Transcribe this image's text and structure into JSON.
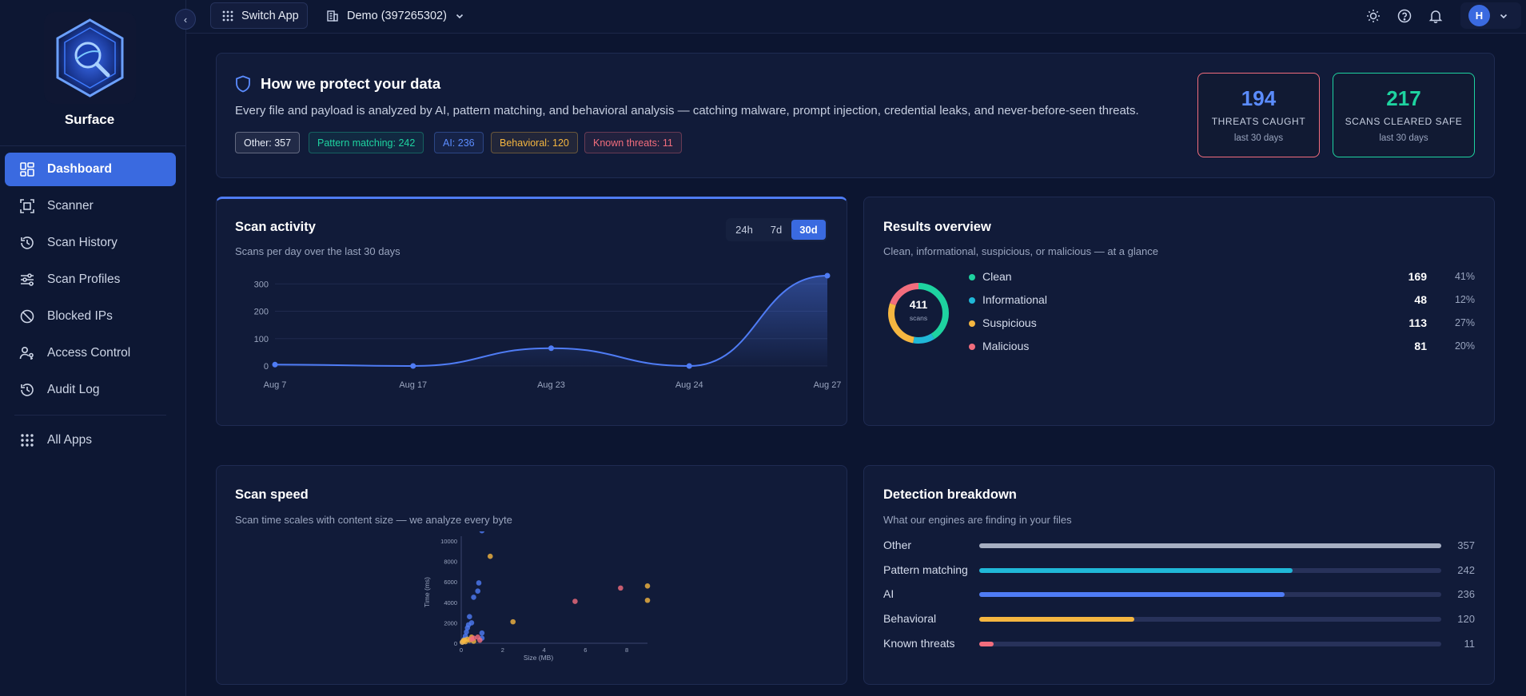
{
  "sidebar": {
    "app_name": "Surface",
    "nav": [
      {
        "label": "Dashboard",
        "icon": "dashboard-icon",
        "active": true
      },
      {
        "label": "Scanner",
        "icon": "scanner-icon",
        "active": false
      },
      {
        "label": "Scan History",
        "icon": "history-icon",
        "active": false
      },
      {
        "label": "Scan Profiles",
        "icon": "sliders-icon",
        "active": false
      },
      {
        "label": "Blocked IPs",
        "icon": "block-icon",
        "active": false
      },
      {
        "label": "Access Control",
        "icon": "user-key-icon",
        "active": false
      },
      {
        "label": "Audit Log",
        "icon": "history-icon",
        "active": false
      }
    ],
    "all_apps": "All Apps"
  },
  "topbar": {
    "switch_app": "Switch App",
    "org": "Demo (397265302)",
    "avatar_initial": "H"
  },
  "protect": {
    "title": "How we protect your data",
    "description": "Every file and payload is analyzed by AI, pattern matching, and behavioral analysis — catching malware, prompt injection, credential leaks, and never-before-seen threats.",
    "chips": [
      {
        "label": "Other: 357",
        "color": "#e6ebf5"
      },
      {
        "label": "Pattern matching: 242",
        "color": "#1ed3a0"
      },
      {
        "label": "AI: 236",
        "color": "#5b8cff"
      },
      {
        "label": "Behavioral: 120",
        "color": "#f5b640"
      },
      {
        "label": "Known threats: 11",
        "color": "#f26d7d"
      }
    ],
    "threats": {
      "value": "194",
      "label": "THREATS CAUGHT",
      "sub": "last 30 days",
      "color": "#f26d7d"
    },
    "cleared": {
      "value": "217",
      "label": "SCANS CLEARED SAFE",
      "sub": "last 30 days",
      "color": "#1ed3a0"
    }
  },
  "activity": {
    "title": "Scan activity",
    "subtitle": "Scans per day over the last 30 days",
    "ranges": [
      {
        "label": "24h",
        "active": false
      },
      {
        "label": "7d",
        "active": false
      },
      {
        "label": "30d",
        "active": true
      }
    ],
    "chart_data": {
      "type": "line",
      "x": [
        "Aug 7",
        "Aug 17",
        "Aug 23",
        "Aug 24",
        "Aug 27"
      ],
      "values": [
        5,
        0,
        65,
        0,
        330
      ],
      "yticks": [
        0,
        100,
        200,
        300
      ],
      "ylim": [
        0,
        330
      ],
      "color": "#4f7cf5"
    }
  },
  "results": {
    "title": "Results overview",
    "subtitle": "Clean, informational, suspicious, or malicious — at a glance",
    "total": "411",
    "total_label": "scans",
    "items": [
      {
        "label": "Clean",
        "count": "169",
        "pct": "41%",
        "value": 169,
        "color": "#1ed3a0"
      },
      {
        "label": "Informational",
        "count": "48",
        "pct": "12%",
        "value": 48,
        "color": "#20b8d8"
      },
      {
        "label": "Suspicious",
        "count": "113",
        "pct": "27%",
        "value": 113,
        "color": "#f5b640"
      },
      {
        "label": "Malicious",
        "count": "81",
        "pct": "20%",
        "value": 81,
        "color": "#f26d7d"
      }
    ]
  },
  "speed": {
    "title": "Scan speed",
    "subtitle": "Scan time scales with content size — we analyze every byte",
    "chart_data": {
      "type": "scatter",
      "xlabel": "Size (MB)",
      "ylabel": "Time (ms)",
      "xlim": [
        0,
        9
      ],
      "ylim": [
        0,
        10000
      ],
      "xticks": [
        0,
        2,
        4,
        6,
        8
      ],
      "yticks": [
        0,
        2000,
        4000,
        6000,
        8000,
        10000
      ],
      "series": [
        {
          "color": "#4f7cf5",
          "points": [
            [
              0.1,
              200
            ],
            [
              0.15,
              400
            ],
            [
              0.2,
              700
            ],
            [
              0.25,
              1100
            ],
            [
              0.3,
              1500
            ],
            [
              0.35,
              1800
            ],
            [
              0.4,
              2600
            ],
            [
              0.6,
              4500
            ],
            [
              0.5,
              2000
            ],
            [
              0.8,
              5100
            ],
            [
              0.85,
              5900
            ],
            [
              1.0,
              1000
            ],
            [
              1.0,
              500
            ],
            [
              0.05,
              100
            ],
            [
              1.0,
              11000
            ]
          ]
        },
        {
          "color": "#f5b640",
          "points": [
            [
              0.05,
              100
            ],
            [
              0.1,
              250
            ],
            [
              0.15,
              300
            ],
            [
              0.2,
              150
            ],
            [
              0.3,
              400
            ],
            [
              0.4,
              300
            ],
            [
              0.5,
              600
            ],
            [
              1.4,
              8500
            ],
            [
              2.5,
              2100
            ],
            [
              9.0,
              5600
            ],
            [
              9.0,
              4200
            ],
            [
              0.6,
              200
            ]
          ]
        },
        {
          "color": "#f26d7d",
          "points": [
            [
              0.5,
              400
            ],
            [
              0.6,
              500
            ],
            [
              0.8,
              600
            ],
            [
              0.9,
              300
            ],
            [
              5.5,
              4100
            ],
            [
              7.7,
              5400
            ]
          ]
        }
      ]
    }
  },
  "detection": {
    "title": "Detection breakdown",
    "subtitle": "What our engines are finding in your files",
    "max": 357,
    "items": [
      {
        "label": "Other",
        "value": 357,
        "display": "357",
        "color": "#a7afc2"
      },
      {
        "label": "Pattern matching",
        "value": 242,
        "display": "242",
        "color": "#20b8d8"
      },
      {
        "label": "AI",
        "value": 236,
        "display": "236",
        "color": "#4f7cf5"
      },
      {
        "label": "Behavioral",
        "value": 120,
        "display": "120",
        "color": "#f5b640"
      },
      {
        "label": "Known threats",
        "value": 11,
        "display": "11",
        "color": "#f26d7d"
      }
    ]
  }
}
